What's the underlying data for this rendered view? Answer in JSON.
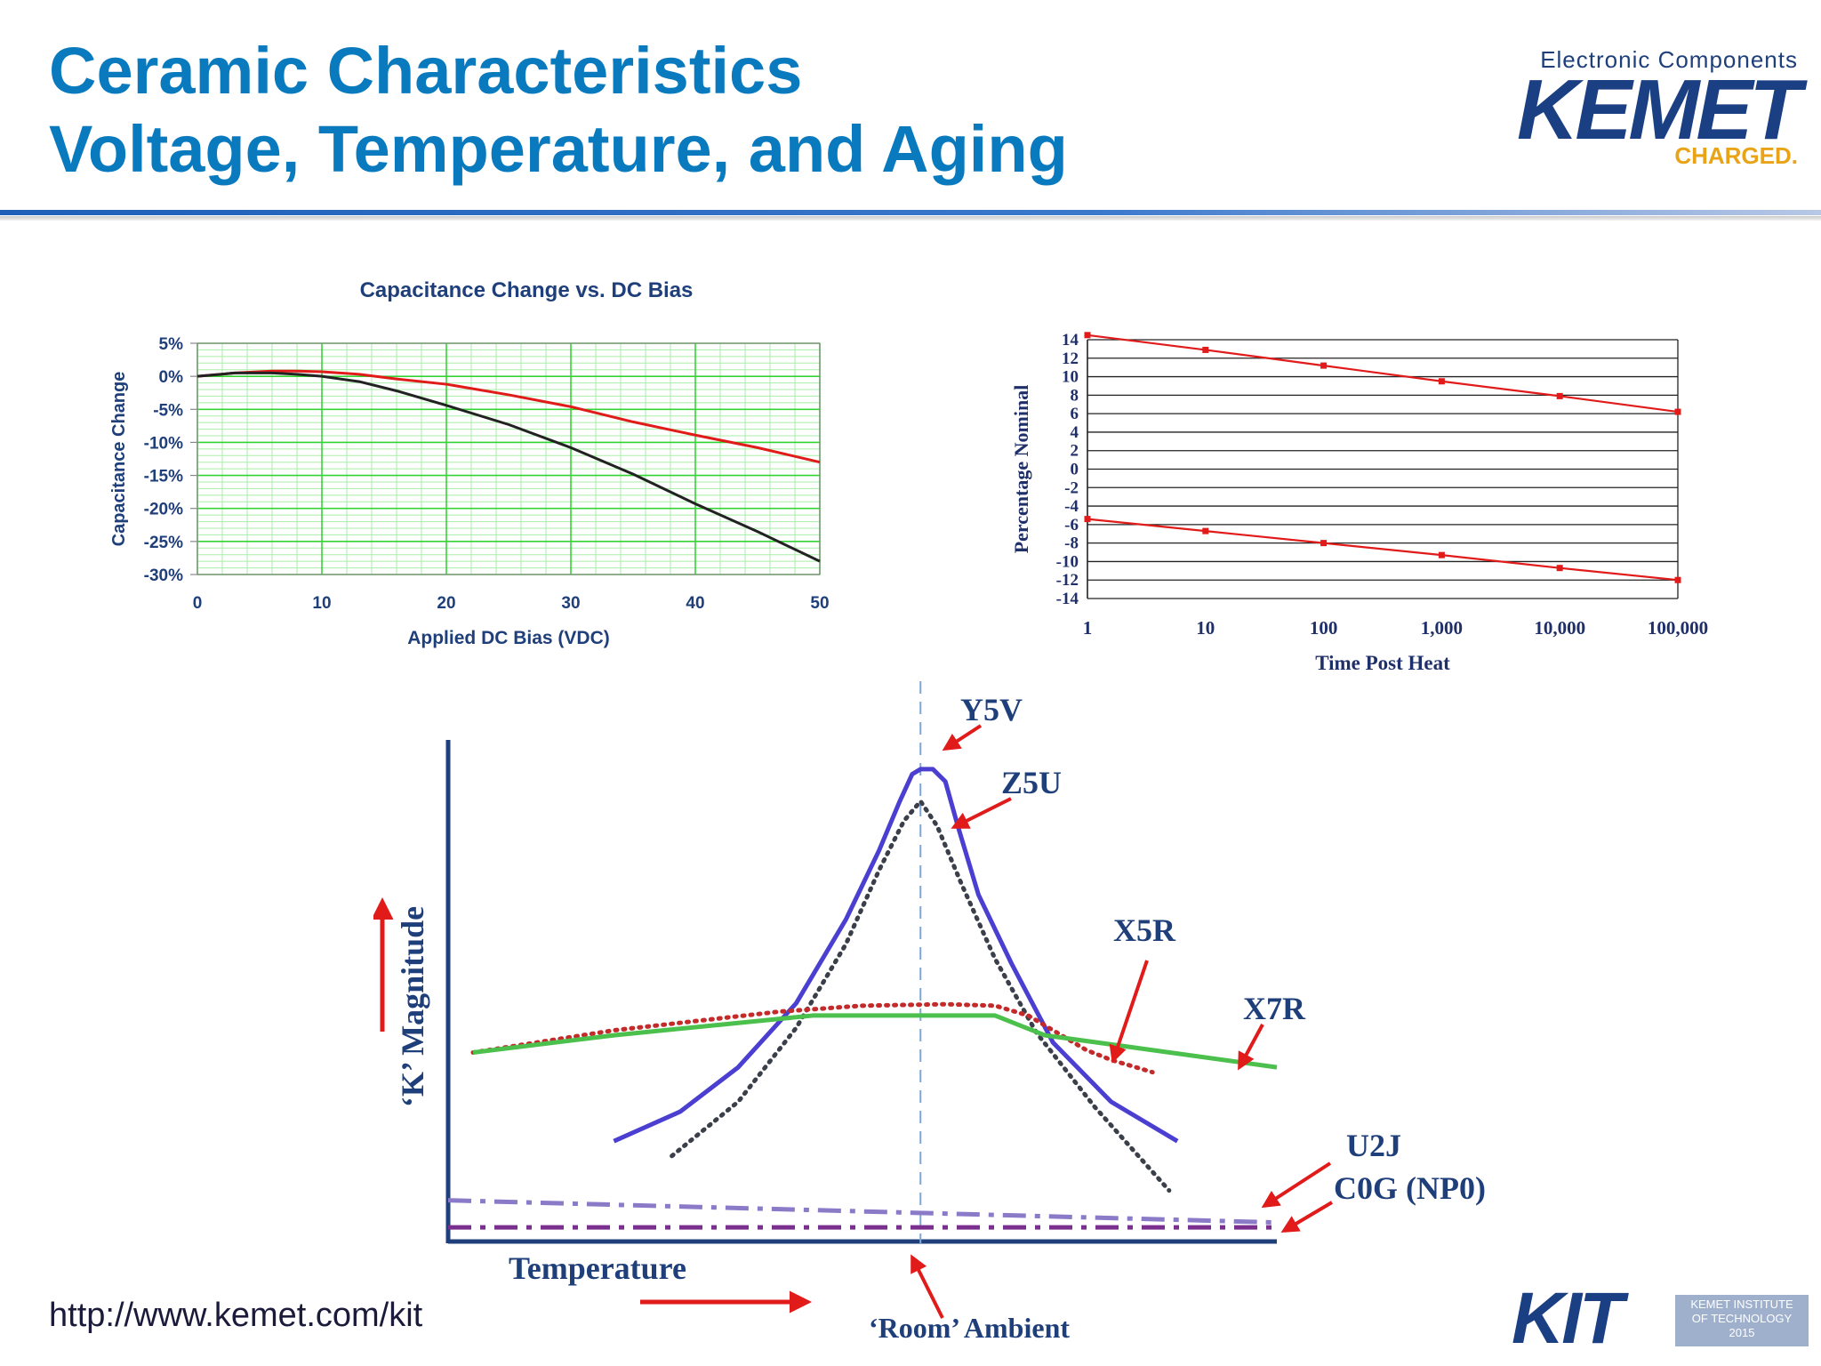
{
  "header": {
    "title_line1": "Ceramic Characteristics",
    "title_line2": "Voltage, Temperature, and Aging"
  },
  "logo": {
    "tagline": "Electronic Components",
    "brand": "KEMET",
    "slogan": "CHARGED."
  },
  "footer": {
    "url": "http://www.kemet.com/kit",
    "kit_brand": "KIT",
    "kit_sub": [
      "KEMET INSTITUTE",
      "OF TECHNOLOGY",
      "2015"
    ]
  },
  "colors": {
    "title": "#0a7abf",
    "red": "#e11a1a",
    "black": "#222222",
    "grid_green": "#35d435",
    "blue": "#4a3fd0",
    "green": "#4cc04c"
  },
  "chart_data": [
    {
      "id": "dc_bias",
      "type": "line",
      "title": "Capacitance Change vs. DC Bias",
      "xlabel": "Applied DC Bias (VDC)",
      "ylabel": "Capacitance Change",
      "xlim": [
        0,
        50
      ],
      "ylim": [
        -30,
        5
      ],
      "x_ticks": [
        0,
        10,
        20,
        30,
        40,
        50
      ],
      "y_ticks": [
        5,
        0,
        -5,
        -10,
        -15,
        -20,
        -25,
        -30
      ],
      "y_tick_labels": [
        "5%",
        "0%",
        "-5%",
        "-10%",
        "-15%",
        "-20%",
        "-25%",
        "-30%"
      ],
      "grid": true,
      "series": [
        {
          "name": "red",
          "color": "#e11a1a",
          "x": [
            0,
            3,
            6,
            8,
            10,
            13,
            16,
            20,
            25,
            30,
            35,
            40,
            45,
            50
          ],
          "y": [
            0,
            0.5,
            0.8,
            0.8,
            0.7,
            0.3,
            -0.4,
            -1.2,
            -2.8,
            -4.6,
            -6.9,
            -8.9,
            -10.8,
            -13
          ]
        },
        {
          "name": "black",
          "color": "#222222",
          "x": [
            0,
            3,
            6,
            8,
            10,
            13,
            16,
            20,
            25,
            30,
            35,
            40,
            45,
            50
          ],
          "y": [
            0,
            0.5,
            0.5,
            0.3,
            0,
            -0.8,
            -2.2,
            -4.4,
            -7.3,
            -10.8,
            -14.8,
            -19.3,
            -23.5,
            -28
          ]
        }
      ]
    },
    {
      "id": "aging",
      "type": "line",
      "xlabel": "Time Post Heat",
      "ylabel": "Percentage Nominal",
      "x_scale": "log",
      "xlim": [
        1,
        100000
      ],
      "ylim": [
        -14,
        14
      ],
      "x_ticks": [
        1,
        10,
        100,
        1000,
        10000,
        100000
      ],
      "x_tick_labels": [
        "1",
        "10",
        "100",
        "1,000",
        "10,000",
        "100,000"
      ],
      "y_ticks": [
        14,
        12,
        10,
        8,
        6,
        4,
        2,
        0,
        -2,
        -4,
        -6,
        -8,
        -10,
        -12,
        -14
      ],
      "y_tick_labels": [
        "14",
        "12",
        "10",
        "8",
        "6",
        "4",
        "2",
        "0",
        "-2",
        "-4",
        "-6",
        "-8",
        "-10",
        "-12",
        "-14"
      ],
      "grid": true,
      "series": [
        {
          "name": "upper",
          "color": "#e11a1a",
          "x": [
            1,
            10,
            100,
            1000,
            10000,
            100000
          ],
          "y": [
            14.5,
            12.9,
            11.2,
            9.5,
            7.9,
            6.2
          ]
        },
        {
          "name": "lower",
          "color": "#e11a1a",
          "x": [
            1,
            10,
            100,
            1000,
            10000,
            100000
          ],
          "y": [
            -5.4,
            -6.7,
            -8,
            -9.3,
            -10.7,
            -12
          ]
        }
      ]
    },
    {
      "id": "k_vs_temp",
      "type": "line",
      "xlabel": "Temperature",
      "ylabel": "‘K’ Magnitude",
      "room_label": "‘Room’ Ambient",
      "xlim": [
        0,
        100
      ],
      "ylim": [
        0,
        100
      ],
      "room_x": 57,
      "series": [
        {
          "name": "Y5V",
          "label": "Y5V",
          "color": "#4a3fd0",
          "style": "solid",
          "x": [
            20,
            28,
            35,
            42,
            48,
            52,
            54.5,
            56,
            57,
            58.5,
            60,
            61.5,
            64,
            68,
            73,
            80,
            88
          ],
          "y": [
            20,
            26,
            35,
            48,
            65,
            79,
            89,
            94.5,
            95.5,
            95.5,
            93,
            84,
            70,
            56,
            40,
            28,
            20
          ]
        },
        {
          "name": "Z5U",
          "label": "Z5U",
          "color": "#3a3f4a",
          "style": "dotted",
          "x": [
            27,
            35,
            42,
            48,
            52,
            55,
            57,
            59,
            62,
            66,
            71,
            78,
            87
          ],
          "y": [
            17,
            28,
            43,
            60,
            75,
            85,
            89,
            84,
            72,
            57,
            42,
            27,
            10
          ]
        },
        {
          "name": "X5R",
          "label": "X5R",
          "color": "#c42a2a",
          "style": "dotted",
          "x": [
            3,
            20,
            40,
            50,
            60,
            66,
            70,
            74,
            77,
            80,
            85
          ],
          "y": [
            38,
            42.5,
            46.3,
            47.5,
            47.8,
            47.5,
            45.5,
            41.5,
            38.5,
            36.5,
            34
          ]
        },
        {
          "name": "X7R",
          "label": "X7R",
          "color": "#4cc04c",
          "style": "solid",
          "x": [
            3,
            20,
            44,
            66,
            72,
            100
          ],
          "y": [
            38,
            41.5,
            45.5,
            45.5,
            41.5,
            35
          ]
        },
        {
          "name": "U2J",
          "label": "U2J",
          "color": "#8a7ac8",
          "style": "dashdot",
          "x": [
            0,
            100
          ],
          "y": [
            8,
            3.5
          ]
        },
        {
          "name": "C0G (NP0)",
          "label": "C0G (NP0)",
          "color": "#7a2f8f",
          "style": "dashdot",
          "x": [
            0,
            100
          ],
          "y": [
            2.5,
            2.5
          ]
        }
      ]
    }
  ]
}
